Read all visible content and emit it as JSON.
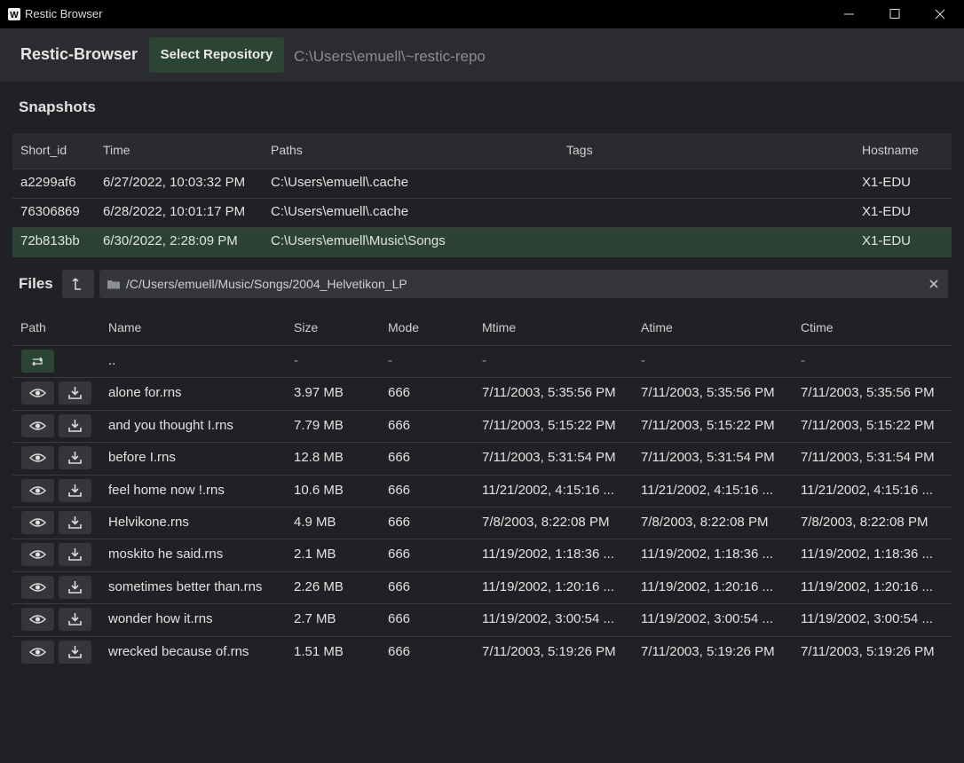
{
  "window": {
    "title": "Restic Browser"
  },
  "header": {
    "app_name": "Restic-Browser",
    "select_button": "Select Repository",
    "repository_path": "C:\\Users\\emuell\\~restic-repo"
  },
  "snapshots": {
    "title": "Snapshots",
    "columns": [
      "Short_id",
      "Time",
      "Paths",
      "Tags",
      "Hostname"
    ],
    "rows": [
      {
        "short_id": "a2299af6",
        "time": "6/27/2022, 10:03:32 PM",
        "paths": "C:\\Users\\emuell\\.cache",
        "hostname": "X1-EDU"
      },
      {
        "short_id": "76306869",
        "time": "6/28/2022, 10:01:17 PM",
        "paths": "C:\\Users\\emuell\\.cache",
        "hostname": "X1-EDU"
      },
      {
        "short_id": "72b813bb",
        "time": "6/30/2022, 2:28:09 PM",
        "paths": "C:\\Users\\emuell\\Music\\Songs",
        "hostname": "X1-EDU"
      }
    ],
    "selected_row": 2
  },
  "files": {
    "title": "Files",
    "path": "/C/Users/emuell/Music/Songs/2004_Helvetikon_LP",
    "columns": [
      "Path",
      "Name",
      "Size",
      "Mode",
      "Mtime",
      "Atime",
      "Ctime"
    ],
    "parent": {
      "name": "..",
      "size": "-",
      "mode": "-",
      "mtime": "-",
      "atime": "-",
      "ctime": "-"
    },
    "rows": [
      {
        "name": "alone for.rns",
        "size": "3.97 MB",
        "mode": "666",
        "mtime": "7/11/2003, 5:35:56 PM",
        "atime": "7/11/2003, 5:35:56 PM",
        "ctime": "7/11/2003, 5:35:56 PM"
      },
      {
        "name": "and you thought I.rns",
        "size": "7.79 MB",
        "mode": "666",
        "mtime": "7/11/2003, 5:15:22 PM",
        "atime": "7/11/2003, 5:15:22 PM",
        "ctime": "7/11/2003, 5:15:22 PM"
      },
      {
        "name": "before I.rns",
        "size": "12.8 MB",
        "mode": "666",
        "mtime": "7/11/2003, 5:31:54 PM",
        "atime": "7/11/2003, 5:31:54 PM",
        "ctime": "7/11/2003, 5:31:54 PM"
      },
      {
        "name": "feel home now !.rns",
        "size": "10.6 MB",
        "mode": "666",
        "mtime": "11/21/2002, 4:15:16 ...",
        "atime": "11/21/2002, 4:15:16 ...",
        "ctime": "11/21/2002, 4:15:16 ..."
      },
      {
        "name": "Helvikone.rns",
        "size": "4.9 MB",
        "mode": "666",
        "mtime": "7/8/2003, 8:22:08 PM",
        "atime": "7/8/2003, 8:22:08 PM",
        "ctime": "7/8/2003, 8:22:08 PM"
      },
      {
        "name": "moskito he said.rns",
        "size": "2.1 MB",
        "mode": "666",
        "mtime": "11/19/2002, 1:18:36 ...",
        "atime": "11/19/2002, 1:18:36 ...",
        "ctime": "11/19/2002, 1:18:36 ..."
      },
      {
        "name": "sometimes better than.rns",
        "size": "2.26 MB",
        "mode": "666",
        "mtime": "11/19/2002, 1:20:16 ...",
        "atime": "11/19/2002, 1:20:16 ...",
        "ctime": "11/19/2002, 1:20:16 ..."
      },
      {
        "name": "wonder how it.rns",
        "size": "2.7 MB",
        "mode": "666",
        "mtime": "11/19/2002, 3:00:54 ...",
        "atime": "11/19/2002, 3:00:54 ...",
        "ctime": "11/19/2002, 3:00:54 ..."
      },
      {
        "name": "wrecked because of.rns",
        "size": "1.51 MB",
        "mode": "666",
        "mtime": "7/11/2003, 5:19:26 PM",
        "atime": "7/11/2003, 5:19:26 PM",
        "ctime": "7/11/2003, 5:19:26 PM"
      }
    ]
  }
}
